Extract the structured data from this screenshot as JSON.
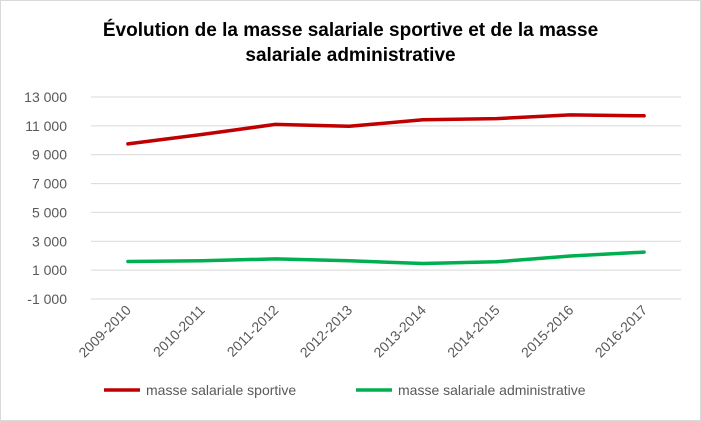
{
  "chart_data": {
    "type": "line",
    "title_lines": [
      "Évolution de la masse salariale sportive et de la masse",
      "salariale administrative"
    ],
    "categories": [
      "2009-2010",
      "2010-2011",
      "2011-2012",
      "2012-2013",
      "2013-2014",
      "2014-2015",
      "2015-2016",
      "2016-2017"
    ],
    "series": [
      {
        "name": "masse salariale sportive",
        "color": "#c00000",
        "values": [
          9750,
          10400,
          11100,
          10970,
          11420,
          11500,
          11760,
          11700
        ]
      },
      {
        "name": "masse salariale administrative",
        "color": "#00b050",
        "values": [
          1600,
          1650,
          1780,
          1650,
          1460,
          1580,
          1980,
          2250
        ]
      }
    ],
    "yticks": [
      "13 000",
      "11 000",
      "9 000",
      "7 000",
      "5 000",
      "3 000",
      "1 000",
      "-1 000"
    ],
    "ylim": [
      -1000,
      13000
    ],
    "grid": true,
    "legend": "bottom",
    "xlabel": "",
    "ylabel": ""
  }
}
